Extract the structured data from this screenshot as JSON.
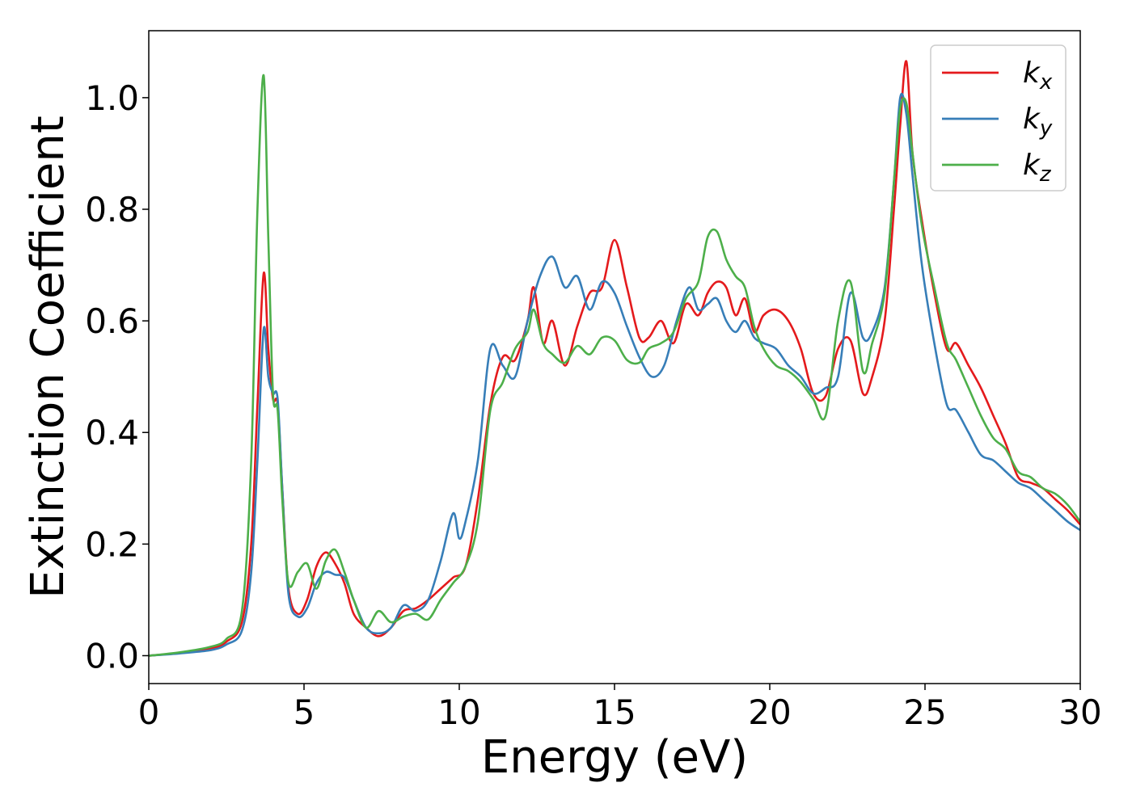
{
  "chart_data": {
    "type": "line",
    "xlabel": "Energy (eV)",
    "ylabel": "Extinction Coefficient",
    "xlim": [
      0,
      30
    ],
    "ylim": [
      -0.05,
      1.12
    ],
    "xticks": [
      "0",
      "5",
      "10",
      "15",
      "20",
      "25",
      "30"
    ],
    "yticks": [
      "0.0",
      "0.2",
      "0.4",
      "0.6",
      "0.8",
      "1.0"
    ],
    "grid": false,
    "legend_position": "top-right",
    "series": [
      {
        "name": "k_x",
        "label_main": "k",
        "label_sub": "x",
        "color": "#e41a1c",
        "x": [
          0,
          1,
          2,
          2.5,
          3,
          3.3,
          3.5,
          3.7,
          3.85,
          4.0,
          4.15,
          4.3,
          4.5,
          4.8,
          5.1,
          5.4,
          5.7,
          6.0,
          6.3,
          6.6,
          7.0,
          7.4,
          7.8,
          8.2,
          8.6,
          9.0,
          9.4,
          9.8,
          10.2,
          10.6,
          11.0,
          11.4,
          11.8,
          12.2,
          12.4,
          12.7,
          13.0,
          13.4,
          13.8,
          14.2,
          14.6,
          15.0,
          15.4,
          15.8,
          16.1,
          16.5,
          16.9,
          17.3,
          17.7,
          18.0,
          18.3,
          18.6,
          18.9,
          19.2,
          19.5,
          19.8,
          20.2,
          20.6,
          21.0,
          21.4,
          21.8,
          22.2,
          22.6,
          23.0,
          23.3,
          23.7,
          24.0,
          24.2,
          24.4,
          24.6,
          24.9,
          25.3,
          25.7,
          26.0,
          26.4,
          26.8,
          27.2,
          27.6,
          28.0,
          28.4,
          28.8,
          29.2,
          29.6,
          30.0
        ],
        "y": [
          0,
          0.005,
          0.013,
          0.025,
          0.06,
          0.2,
          0.45,
          0.685,
          0.55,
          0.46,
          0.45,
          0.3,
          0.12,
          0.075,
          0.1,
          0.16,
          0.185,
          0.165,
          0.13,
          0.075,
          0.05,
          0.035,
          0.05,
          0.08,
          0.085,
          0.1,
          0.12,
          0.14,
          0.16,
          0.28,
          0.45,
          0.535,
          0.53,
          0.6,
          0.66,
          0.56,
          0.6,
          0.52,
          0.59,
          0.65,
          0.66,
          0.745,
          0.66,
          0.57,
          0.57,
          0.6,
          0.56,
          0.63,
          0.61,
          0.65,
          0.67,
          0.66,
          0.61,
          0.64,
          0.58,
          0.61,
          0.62,
          0.6,
          0.55,
          0.47,
          0.465,
          0.55,
          0.565,
          0.47,
          0.5,
          0.6,
          0.8,
          0.95,
          1.065,
          0.9,
          0.78,
          0.65,
          0.55,
          0.56,
          0.52,
          0.48,
          0.43,
          0.38,
          0.32,
          0.31,
          0.3,
          0.28,
          0.26,
          0.235
        ]
      },
      {
        "name": "k_y",
        "label_main": "k",
        "label_sub": "y",
        "color": "#377eb8",
        "x": [
          0,
          1,
          2,
          2.5,
          3,
          3.3,
          3.5,
          3.7,
          3.85,
          4.0,
          4.15,
          4.3,
          4.5,
          4.8,
          5.1,
          5.4,
          5.7,
          6.0,
          6.3,
          6.6,
          7.0,
          7.4,
          7.8,
          8.2,
          8.6,
          9.0,
          9.4,
          9.8,
          10.0,
          10.2,
          10.6,
          11.0,
          11.4,
          11.8,
          12.2,
          12.6,
          13.0,
          13.4,
          13.8,
          14.2,
          14.6,
          15.0,
          15.4,
          15.8,
          16.2,
          16.6,
          17.0,
          17.4,
          17.7,
          18.0,
          18.3,
          18.6,
          18.9,
          19.2,
          19.5,
          19.8,
          20.2,
          20.6,
          21.0,
          21.4,
          21.8,
          22.2,
          22.6,
          23.0,
          23.3,
          23.7,
          24.0,
          24.2,
          24.4,
          24.6,
          24.9,
          25.3,
          25.7,
          26.0,
          26.4,
          26.8,
          27.2,
          27.6,
          28.0,
          28.4,
          28.8,
          29.2,
          29.6,
          30.0
        ],
        "y": [
          0,
          0.004,
          0.01,
          0.02,
          0.045,
          0.15,
          0.35,
          0.585,
          0.5,
          0.47,
          0.46,
          0.3,
          0.11,
          0.07,
          0.085,
          0.13,
          0.15,
          0.145,
          0.14,
          0.1,
          0.05,
          0.04,
          0.05,
          0.09,
          0.08,
          0.1,
          0.17,
          0.255,
          0.21,
          0.24,
          0.35,
          0.55,
          0.52,
          0.5,
          0.6,
          0.68,
          0.715,
          0.66,
          0.68,
          0.62,
          0.67,
          0.65,
          0.59,
          0.535,
          0.5,
          0.52,
          0.6,
          0.66,
          0.62,
          0.63,
          0.64,
          0.6,
          0.58,
          0.6,
          0.57,
          0.56,
          0.55,
          0.52,
          0.5,
          0.47,
          0.48,
          0.5,
          0.65,
          0.57,
          0.58,
          0.66,
          0.85,
          1.0,
          0.97,
          0.86,
          0.7,
          0.56,
          0.45,
          0.44,
          0.4,
          0.36,
          0.35,
          0.33,
          0.31,
          0.3,
          0.28,
          0.26,
          0.24,
          0.225
        ]
      },
      {
        "name": "k_z",
        "label_main": "k",
        "label_sub": "z",
        "color": "#4daf4a",
        "x": [
          0,
          1,
          2,
          2.5,
          3,
          3.3,
          3.5,
          3.7,
          3.85,
          4.0,
          4.15,
          4.3,
          4.5,
          4.8,
          5.1,
          5.4,
          5.7,
          6.0,
          6.3,
          6.6,
          7.0,
          7.4,
          7.8,
          8.2,
          8.6,
          9.0,
          9.4,
          9.8,
          10.2,
          10.6,
          11.0,
          11.4,
          11.8,
          12.2,
          12.4,
          12.7,
          13.0,
          13.4,
          13.8,
          14.2,
          14.6,
          15.0,
          15.4,
          15.8,
          16.1,
          16.5,
          16.9,
          17.3,
          17.7,
          18.0,
          18.3,
          18.6,
          18.9,
          19.2,
          19.5,
          19.8,
          20.2,
          20.6,
          21.0,
          21.4,
          21.8,
          22.2,
          22.6,
          23.0,
          23.3,
          23.7,
          24.0,
          24.2,
          24.4,
          24.6,
          24.9,
          25.3,
          25.7,
          26.0,
          26.4,
          26.8,
          27.2,
          27.6,
          28.0,
          28.4,
          28.8,
          29.2,
          29.6,
          30.0
        ],
        "y": [
          0,
          0.006,
          0.016,
          0.03,
          0.08,
          0.35,
          0.8,
          1.04,
          0.75,
          0.47,
          0.44,
          0.28,
          0.13,
          0.15,
          0.165,
          0.12,
          0.17,
          0.19,
          0.15,
          0.1,
          0.05,
          0.08,
          0.06,
          0.07,
          0.075,
          0.065,
          0.1,
          0.13,
          0.16,
          0.24,
          0.44,
          0.49,
          0.55,
          0.58,
          0.62,
          0.56,
          0.54,
          0.525,
          0.555,
          0.54,
          0.57,
          0.565,
          0.53,
          0.525,
          0.55,
          0.56,
          0.58,
          0.64,
          0.67,
          0.75,
          0.76,
          0.71,
          0.68,
          0.66,
          0.59,
          0.55,
          0.52,
          0.51,
          0.49,
          0.46,
          0.43,
          0.6,
          0.67,
          0.51,
          0.56,
          0.65,
          0.85,
          0.98,
          0.99,
          0.9,
          0.77,
          0.66,
          0.56,
          0.53,
          0.48,
          0.43,
          0.39,
          0.37,
          0.33,
          0.32,
          0.3,
          0.29,
          0.27,
          0.24
        ]
      }
    ]
  }
}
